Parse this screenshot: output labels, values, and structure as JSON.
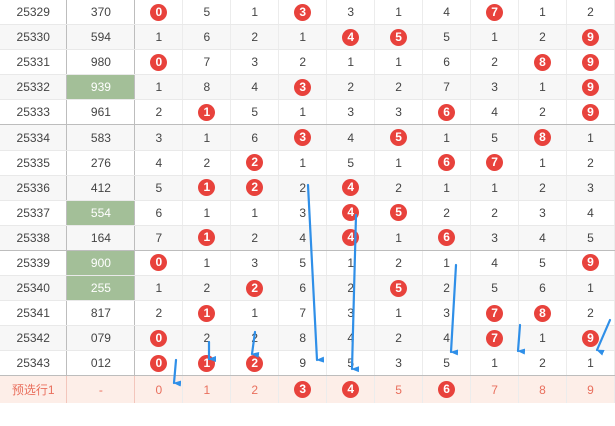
{
  "colors": {
    "ball": "#e8423c",
    "highlight": "#a3bf98",
    "arrow": "#2f8fe8",
    "pre_row_bg": "#fdeee8"
  },
  "rows": [
    {
      "issue": "25329",
      "prize": "370",
      "hl": false,
      "cells": [
        {
          "v": "0",
          "ball": true
        },
        {
          "v": "5"
        },
        {
          "v": "1"
        },
        {
          "v": "3",
          "ball": true
        },
        {
          "v": "3"
        },
        {
          "v": "1"
        },
        {
          "v": "4"
        },
        {
          "v": "7",
          "ball": true
        },
        {
          "v": "1"
        },
        {
          "v": "2"
        }
      ]
    },
    {
      "issue": "25330",
      "prize": "594",
      "hl": false,
      "cells": [
        {
          "v": "1"
        },
        {
          "v": "6"
        },
        {
          "v": "2"
        },
        {
          "v": "1"
        },
        {
          "v": "4",
          "ball": true
        },
        {
          "v": "5",
          "ball": true
        },
        {
          "v": "5"
        },
        {
          "v": "1"
        },
        {
          "v": "2"
        },
        {
          "v": "9",
          "ball": true
        }
      ]
    },
    {
      "issue": "25331",
      "prize": "980",
      "hl": false,
      "cells": [
        {
          "v": "0",
          "ball": true
        },
        {
          "v": "7"
        },
        {
          "v": "3"
        },
        {
          "v": "2"
        },
        {
          "v": "1"
        },
        {
          "v": "1"
        },
        {
          "v": "6"
        },
        {
          "v": "2"
        },
        {
          "v": "8",
          "ball": true
        },
        {
          "v": "9",
          "ball": true
        }
      ]
    },
    {
      "issue": "25332",
      "prize": "939",
      "hl": true,
      "cells": [
        {
          "v": "1"
        },
        {
          "v": "8"
        },
        {
          "v": "4"
        },
        {
          "v": "3",
          "ball": true
        },
        {
          "v": "2"
        },
        {
          "v": "2"
        },
        {
          "v": "7"
        },
        {
          "v": "3"
        },
        {
          "v": "1"
        },
        {
          "v": "9",
          "ball": true
        }
      ]
    },
    {
      "issue": "25333",
      "prize": "961",
      "hl": false,
      "cells": [
        {
          "v": "2"
        },
        {
          "v": "1",
          "ball": true
        },
        {
          "v": "5"
        },
        {
          "v": "1"
        },
        {
          "v": "3"
        },
        {
          "v": "3"
        },
        {
          "v": "6",
          "ball": true
        },
        {
          "v": "4"
        },
        {
          "v": "2"
        },
        {
          "v": "9",
          "ball": true
        }
      ]
    },
    {
      "issue": "25334",
      "prize": "583",
      "hl": false,
      "cells": [
        {
          "v": "3"
        },
        {
          "v": "1"
        },
        {
          "v": "6"
        },
        {
          "v": "3",
          "ball": true
        },
        {
          "v": "4"
        },
        {
          "v": "5",
          "ball": true
        },
        {
          "v": "1"
        },
        {
          "v": "5"
        },
        {
          "v": "8",
          "ball": true
        },
        {
          "v": "1"
        }
      ]
    },
    {
      "issue": "25335",
      "prize": "276",
      "hl": false,
      "cells": [
        {
          "v": "4"
        },
        {
          "v": "2"
        },
        {
          "v": "2",
          "ball": true
        },
        {
          "v": "1"
        },
        {
          "v": "5"
        },
        {
          "v": "1"
        },
        {
          "v": "6",
          "ball": true
        },
        {
          "v": "7",
          "ball": true
        },
        {
          "v": "1"
        },
        {
          "v": "2"
        }
      ]
    },
    {
      "issue": "25336",
      "prize": "412",
      "hl": false,
      "cells": [
        {
          "v": "5"
        },
        {
          "v": "1",
          "ball": true
        },
        {
          "v": "2",
          "ball": true
        },
        {
          "v": "2"
        },
        {
          "v": "4",
          "ball": true
        },
        {
          "v": "2"
        },
        {
          "v": "1"
        },
        {
          "v": "1"
        },
        {
          "v": "2"
        },
        {
          "v": "3"
        }
      ]
    },
    {
      "issue": "25337",
      "prize": "554",
      "hl": true,
      "cells": [
        {
          "v": "6"
        },
        {
          "v": "1"
        },
        {
          "v": "1"
        },
        {
          "v": "3"
        },
        {
          "v": "4",
          "ball": true
        },
        {
          "v": "5",
          "ball": true
        },
        {
          "v": "2"
        },
        {
          "v": "2"
        },
        {
          "v": "3"
        },
        {
          "v": "4"
        }
      ]
    },
    {
      "issue": "25338",
      "prize": "164",
      "hl": false,
      "cells": [
        {
          "v": "7"
        },
        {
          "v": "1",
          "ball": true
        },
        {
          "v": "2"
        },
        {
          "v": "4"
        },
        {
          "v": "4",
          "ball": true
        },
        {
          "v": "1"
        },
        {
          "v": "6",
          "ball": true
        },
        {
          "v": "3"
        },
        {
          "v": "4"
        },
        {
          "v": "5"
        }
      ]
    },
    {
      "issue": "25339",
      "prize": "900",
      "hl": true,
      "cells": [
        {
          "v": "0",
          "ball": true
        },
        {
          "v": "1"
        },
        {
          "v": "3"
        },
        {
          "v": "5"
        },
        {
          "v": "1"
        },
        {
          "v": "2"
        },
        {
          "v": "1"
        },
        {
          "v": "4"
        },
        {
          "v": "5"
        },
        {
          "v": "9",
          "ball": true
        }
      ]
    },
    {
      "issue": "25340",
      "prize": "255",
      "hl": true,
      "cells": [
        {
          "v": "1"
        },
        {
          "v": "2"
        },
        {
          "v": "2",
          "ball": true
        },
        {
          "v": "6"
        },
        {
          "v": "2"
        },
        {
          "v": "5",
          "ball": true
        },
        {
          "v": "2"
        },
        {
          "v": "5"
        },
        {
          "v": "6"
        },
        {
          "v": "1"
        }
      ]
    },
    {
      "issue": "25341",
      "prize": "817",
      "hl": false,
      "cells": [
        {
          "v": "2"
        },
        {
          "v": "1",
          "ball": true
        },
        {
          "v": "1"
        },
        {
          "v": "7"
        },
        {
          "v": "3"
        },
        {
          "v": "1"
        },
        {
          "v": "3"
        },
        {
          "v": "7",
          "ball": true
        },
        {
          "v": "8",
          "ball": true
        },
        {
          "v": "2"
        }
      ]
    },
    {
      "issue": "25342",
      "prize": "079",
      "hl": false,
      "cells": [
        {
          "v": "0",
          "ball": true
        },
        {
          "v": "2"
        },
        {
          "v": "2"
        },
        {
          "v": "8"
        },
        {
          "v": "4"
        },
        {
          "v": "2"
        },
        {
          "v": "4"
        },
        {
          "v": "7",
          "ball": true
        },
        {
          "v": "1"
        },
        {
          "v": "9",
          "ball": true
        }
      ]
    },
    {
      "issue": "25343",
      "prize": "012",
      "hl": false,
      "cells": [
        {
          "v": "0",
          "ball": true
        },
        {
          "v": "1",
          "ball": true
        },
        {
          "v": "2",
          "ball": true
        },
        {
          "v": "9"
        },
        {
          "v": "5"
        },
        {
          "v": "3"
        },
        {
          "v": "5"
        },
        {
          "v": "1"
        },
        {
          "v": "2"
        },
        {
          "v": "1"
        }
      ]
    }
  ],
  "preselect": {
    "label": "预选行1",
    "prize": "-",
    "cells": [
      {
        "v": "0"
      },
      {
        "v": "1"
      },
      {
        "v": "2"
      },
      {
        "v": "3",
        "ball": true
      },
      {
        "v": "4",
        "ball": true
      },
      {
        "v": "5"
      },
      {
        "v": "6",
        "ball": true
      },
      {
        "v": "7"
      },
      {
        "v": "8"
      },
      {
        "v": "9"
      }
    ]
  }
}
